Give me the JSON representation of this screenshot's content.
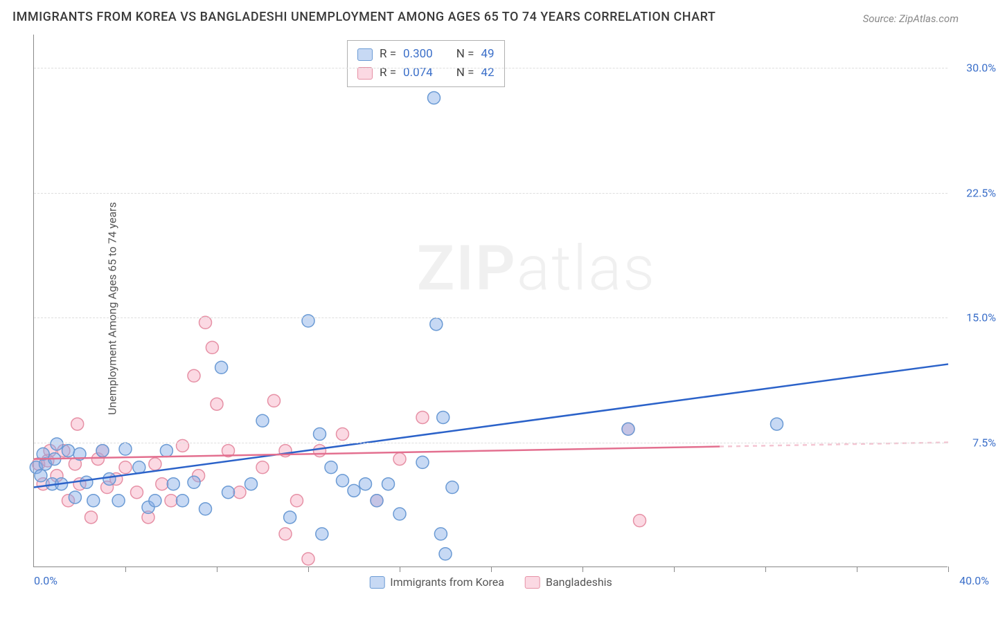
{
  "title": "IMMIGRANTS FROM KOREA VS BANGLADESHI UNEMPLOYMENT AMONG AGES 65 TO 74 YEARS CORRELATION CHART",
  "source": "Source: ZipAtlas.com",
  "ylabel": "Unemployment Among Ages 65 to 74 years",
  "watermark_1": "ZIP",
  "watermark_2": "atlas",
  "chart": {
    "type": "scatter",
    "xlim": [
      0,
      40
    ],
    "ylim": [
      0,
      32
    ],
    "x_origin_label": "0.0%",
    "x_max_label": "40.0%",
    "yticks": [
      7.5,
      15.0,
      22.5,
      30.0
    ],
    "ytick_labels": [
      "7.5%",
      "15.0%",
      "22.5%",
      "30.0%"
    ],
    "xticks": [
      4,
      8,
      12,
      16,
      20,
      24,
      28,
      32,
      36,
      40
    ],
    "grid_color": "#dddddd",
    "axis_color": "#888888",
    "background_color": "#ffffff",
    "series": [
      {
        "name": "Immigrants from Korea",
        "fill": "rgba(130,170,230,0.45)",
        "stroke": "#6a9ad4",
        "line_color": "#2b62c9",
        "line_width": 2.5,
        "marker_radius": 9,
        "R": "0.300",
        "N": "49",
        "trend": {
          "x1": 0,
          "y1": 4.8,
          "x2": 40,
          "y2": 12.2,
          "solid_until_x": 40
        },
        "points": [
          [
            0.1,
            6.0
          ],
          [
            0.3,
            5.5
          ],
          [
            0.4,
            6.8
          ],
          [
            0.5,
            6.2
          ],
          [
            0.8,
            5.0
          ],
          [
            0.9,
            6.5
          ],
          [
            1.0,
            7.4
          ],
          [
            1.2,
            5.0
          ],
          [
            1.5,
            7.0
          ],
          [
            1.8,
            4.2
          ],
          [
            2.0,
            6.8
          ],
          [
            2.3,
            5.1
          ],
          [
            2.6,
            4.0
          ],
          [
            3.0,
            7.0
          ],
          [
            3.3,
            5.3
          ],
          [
            3.7,
            4.0
          ],
          [
            4.0,
            7.1
          ],
          [
            4.6,
            6.0
          ],
          [
            5.0,
            3.6
          ],
          [
            5.3,
            4.0
          ],
          [
            5.8,
            7.0
          ],
          [
            6.1,
            5.0
          ],
          [
            6.5,
            4.0
          ],
          [
            7.0,
            5.1
          ],
          [
            7.5,
            3.5
          ],
          [
            8.2,
            12.0
          ],
          [
            8.5,
            4.5
          ],
          [
            9.5,
            5.0
          ],
          [
            10.0,
            8.8
          ],
          [
            11.2,
            3.0
          ],
          [
            12.0,
            14.8
          ],
          [
            12.5,
            8.0
          ],
          [
            12.6,
            2.0
          ],
          [
            13.0,
            6.0
          ],
          [
            13.5,
            5.2
          ],
          [
            14.0,
            4.6
          ],
          [
            14.5,
            5.0
          ],
          [
            15.0,
            4.0
          ],
          [
            15.5,
            5.0
          ],
          [
            16.0,
            3.2
          ],
          [
            17.0,
            6.3
          ],
          [
            17.5,
            28.2
          ],
          [
            17.6,
            14.6
          ],
          [
            17.8,
            2.0
          ],
          [
            17.9,
            9.0
          ],
          [
            18.0,
            0.8
          ],
          [
            26.0,
            8.3
          ],
          [
            32.5,
            8.6
          ],
          [
            18.3,
            4.8
          ]
        ]
      },
      {
        "name": "Bangladeshis",
        "fill": "rgba(245,160,185,0.40)",
        "stroke": "#e690a5",
        "line_color": "#e36f8f",
        "line_width": 2.5,
        "marker_radius": 9,
        "R": "0.074",
        "N": "42",
        "trend": {
          "x1": 0,
          "y1": 6.5,
          "x2": 40,
          "y2": 7.5,
          "solid_until_x": 30
        },
        "points": [
          [
            0.2,
            6.2
          ],
          [
            0.4,
            5.0
          ],
          [
            0.6,
            6.4
          ],
          [
            0.7,
            7.0
          ],
          [
            1.0,
            5.5
          ],
          [
            1.3,
            7.0
          ],
          [
            1.5,
            4.0
          ],
          [
            1.8,
            6.2
          ],
          [
            1.9,
            8.6
          ],
          [
            2.0,
            5.0
          ],
          [
            2.5,
            3.0
          ],
          [
            2.8,
            6.5
          ],
          [
            3.0,
            7.0
          ],
          [
            3.2,
            4.8
          ],
          [
            3.6,
            5.3
          ],
          [
            4.0,
            6.0
          ],
          [
            4.5,
            4.5
          ],
          [
            5.0,
            3.0
          ],
          [
            5.3,
            6.2
          ],
          [
            5.6,
            5.0
          ],
          [
            6.0,
            4.0
          ],
          [
            6.5,
            7.3
          ],
          [
            7.0,
            11.5
          ],
          [
            7.2,
            5.5
          ],
          [
            7.5,
            14.7
          ],
          [
            7.8,
            13.2
          ],
          [
            8.0,
            9.8
          ],
          [
            8.5,
            7.0
          ],
          [
            9.0,
            4.5
          ],
          [
            10.0,
            6.0
          ],
          [
            10.5,
            10.0
          ],
          [
            11.0,
            7.0
          ],
          [
            11.0,
            2.0
          ],
          [
            11.5,
            4.0
          ],
          [
            12.0,
            0.5
          ],
          [
            12.5,
            7.0
          ],
          [
            13.5,
            8.0
          ],
          [
            15.0,
            4.0
          ],
          [
            16.0,
            6.5
          ],
          [
            17.0,
            9.0
          ],
          [
            26.0,
            8.3
          ],
          [
            26.5,
            2.8
          ]
        ]
      }
    ],
    "legend_bottom": [
      {
        "label": "Immigrants from Korea",
        "fill": "rgba(130,170,230,0.45)",
        "stroke": "#6a9ad4"
      },
      {
        "label": "Bangladeshis",
        "fill": "rgba(245,160,185,0.40)",
        "stroke": "#e690a5"
      }
    ]
  }
}
